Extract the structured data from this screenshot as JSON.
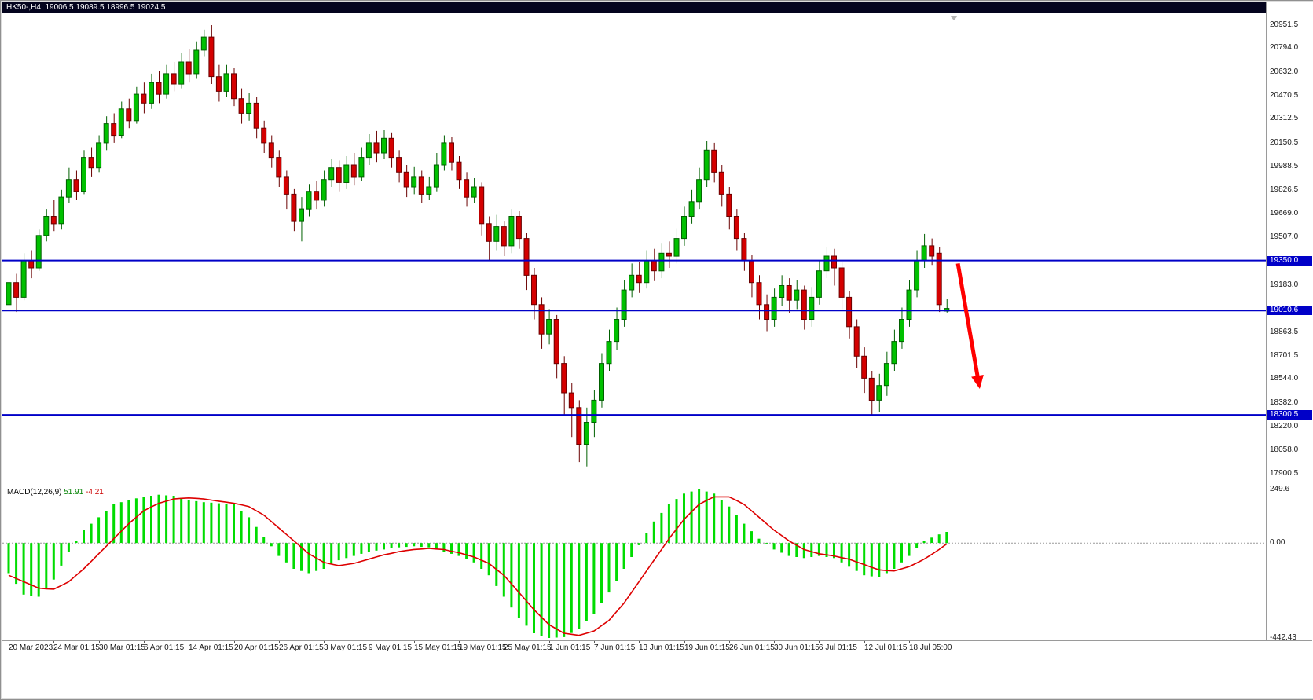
{
  "window": {
    "title": "HK50-,H4  19006.5 19089.5 18996.5 19024.5"
  },
  "macd_label": {
    "name": "MACD(12,26,9)",
    "main_value": "51.91",
    "signal_value": "-4.21"
  },
  "price_axis": {
    "ticks": [
      "20951.5",
      "20794.0",
      "20632.0",
      "20470.5",
      "20312.5",
      "20150.5",
      "19988.5",
      "19826.5",
      "19669.0",
      "19507.0",
      "19183.0",
      "18863.5",
      "18701.5",
      "18544.0",
      "18382.0",
      "18220.0",
      "18058.0",
      "17900.5"
    ],
    "line_tags": [
      "19350.0",
      "19010.6",
      "18300.5"
    ]
  },
  "macd_axis": {
    "ticks": [
      "249.6",
      "0.00",
      "-442.43"
    ]
  },
  "colors": {
    "up": "#00c000",
    "up_border": "#006000",
    "down": "#d40000",
    "down_border": "#6a0000",
    "level_line": "#0000c8",
    "arrow": "#ff0000",
    "macd_hist": "#00dc00",
    "macd_signal": "#dd0000"
  },
  "chart_data": {
    "type": "candlestick",
    "symbol": "HK50-",
    "timeframe": "H4",
    "current_ohlc": {
      "open": 19006.5,
      "high": 19089.5,
      "low": 18996.5,
      "close": 19024.5
    },
    "price_ylim": [
      17820,
      21031
    ],
    "levels": [
      19350.0,
      19010.6,
      18300.5
    ],
    "arrow_annotation": {
      "from": {
        "index": 126.5,
        "price": 19330
      },
      "to": {
        "index": 129.2,
        "price": 18540
      }
    },
    "candles": [
      [
        19050,
        19230,
        18950,
        19200
      ],
      [
        19200,
        19260,
        19000,
        19100
      ],
      [
        19100,
        19400,
        19080,
        19350
      ],
      [
        19350,
        19420,
        19230,
        19300
      ],
      [
        19300,
        19560,
        19280,
        19520
      ],
      [
        19520,
        19700,
        19480,
        19650
      ],
      [
        19650,
        19760,
        19550,
        19600
      ],
      [
        19600,
        19830,
        19560,
        19780
      ],
      [
        19780,
        19980,
        19740,
        19900
      ],
      [
        19900,
        19960,
        19760,
        19820
      ],
      [
        19820,
        20100,
        19800,
        20050
      ],
      [
        20050,
        20120,
        19920,
        19980
      ],
      [
        19980,
        20200,
        19950,
        20150
      ],
      [
        20150,
        20330,
        20100,
        20280
      ],
      [
        20280,
        20350,
        20150,
        20200
      ],
      [
        20200,
        20430,
        20180,
        20380
      ],
      [
        20380,
        20450,
        20250,
        20300
      ],
      [
        20300,
        20530,
        20280,
        20480
      ],
      [
        20480,
        20560,
        20350,
        20420
      ],
      [
        20420,
        20620,
        20380,
        20560
      ],
      [
        20560,
        20640,
        20420,
        20480
      ],
      [
        20480,
        20680,
        20450,
        20620
      ],
      [
        20620,
        20700,
        20500,
        20550
      ],
      [
        20550,
        20760,
        20520,
        20700
      ],
      [
        20700,
        20790,
        20560,
        20620
      ],
      [
        20620,
        20840,
        20590,
        20780
      ],
      [
        20780,
        20920,
        20740,
        20870
      ],
      [
        20870,
        20951,
        20550,
        20600
      ],
      [
        20600,
        20680,
        20430,
        20500
      ],
      [
        20500,
        20680,
        20460,
        20620
      ],
      [
        20620,
        20660,
        20400,
        20450
      ],
      [
        20450,
        20520,
        20280,
        20350
      ],
      [
        20350,
        20490,
        20300,
        20420
      ],
      [
        20420,
        20460,
        20180,
        20250
      ],
      [
        20250,
        20300,
        20080,
        20150
      ],
      [
        20150,
        20200,
        19980,
        20050
      ],
      [
        20050,
        20100,
        19850,
        19920
      ],
      [
        19920,
        19960,
        19700,
        19800
      ],
      [
        19800,
        19840,
        19550,
        19620
      ],
      [
        19620,
        19780,
        19480,
        19700
      ],
      [
        19700,
        19870,
        19650,
        19820
      ],
      [
        19820,
        19890,
        19700,
        19760
      ],
      [
        19760,
        19960,
        19720,
        19900
      ],
      [
        19900,
        20040,
        19850,
        19980
      ],
      [
        19980,
        20030,
        19820,
        19880
      ],
      [
        19880,
        20060,
        19840,
        20000
      ],
      [
        20000,
        20080,
        19860,
        19920
      ],
      [
        19920,
        20120,
        19890,
        20050
      ],
      [
        20050,
        20210,
        20000,
        20150
      ],
      [
        20150,
        20230,
        20020,
        20080
      ],
      [
        20080,
        20240,
        20040,
        20180
      ],
      [
        20180,
        20220,
        19980,
        20050
      ],
      [
        20050,
        20100,
        19880,
        19950
      ],
      [
        19950,
        20000,
        19780,
        19850
      ],
      [
        19850,
        19990,
        19800,
        19920
      ],
      [
        19920,
        19960,
        19740,
        19800
      ],
      [
        19800,
        19920,
        19760,
        19850
      ],
      [
        19850,
        20080,
        19820,
        20000
      ],
      [
        20000,
        20200,
        19960,
        20150
      ],
      [
        20150,
        20190,
        19960,
        20020
      ],
      [
        20020,
        20060,
        19840,
        19900
      ],
      [
        19900,
        19950,
        19720,
        19780
      ],
      [
        19780,
        19910,
        19740,
        19850
      ],
      [
        19850,
        19880,
        19520,
        19600
      ],
      [
        19600,
        19650,
        19350,
        19480
      ],
      [
        19480,
        19660,
        19420,
        19580
      ],
      [
        19580,
        19620,
        19380,
        19450
      ],
      [
        19450,
        19700,
        19400,
        19650
      ],
      [
        19650,
        19690,
        19430,
        19500
      ],
      [
        19500,
        19540,
        19150,
        19250
      ],
      [
        19250,
        19300,
        18950,
        19050
      ],
      [
        19050,
        19100,
        18750,
        18850
      ],
      [
        18850,
        19020,
        18780,
        18950
      ],
      [
        18950,
        18980,
        18550,
        18650
      ],
      [
        18650,
        18700,
        18300,
        18450
      ],
      [
        18450,
        18520,
        18150,
        18350
      ],
      [
        18350,
        18400,
        17980,
        18100
      ],
      [
        18100,
        18350,
        17950,
        18250
      ],
      [
        18250,
        18470,
        18150,
        18400
      ],
      [
        18400,
        18720,
        18350,
        18650
      ],
      [
        18650,
        18880,
        18600,
        18800
      ],
      [
        18800,
        19030,
        18740,
        18950
      ],
      [
        18950,
        19220,
        18900,
        19150
      ],
      [
        19150,
        19330,
        19100,
        19250
      ],
      [
        19250,
        19340,
        19130,
        19200
      ],
      [
        19200,
        19420,
        19160,
        19350
      ],
      [
        19350,
        19430,
        19210,
        19280
      ],
      [
        19280,
        19470,
        19230,
        19400
      ],
      [
        19400,
        19480,
        19300,
        19380
      ],
      [
        19380,
        19570,
        19330,
        19500
      ],
      [
        19500,
        19720,
        19450,
        19650
      ],
      [
        19650,
        19830,
        19600,
        19750
      ],
      [
        19750,
        19980,
        19700,
        19900
      ],
      [
        19900,
        20160,
        19850,
        20100
      ],
      [
        20100,
        20150,
        19880,
        19950
      ],
      [
        19950,
        20000,
        19720,
        19800
      ],
      [
        19800,
        19850,
        19560,
        19650
      ],
      [
        19650,
        19700,
        19420,
        19500
      ],
      [
        19500,
        19540,
        19280,
        19350
      ],
      [
        19350,
        19390,
        19100,
        19200
      ],
      [
        19200,
        19250,
        18950,
        19050
      ],
      [
        19050,
        19120,
        18870,
        18950
      ],
      [
        18950,
        19160,
        18900,
        19100
      ],
      [
        19100,
        19250,
        19040,
        19180
      ],
      [
        19180,
        19230,
        18990,
        19080
      ],
      [
        19080,
        19220,
        19020,
        19150
      ],
      [
        19150,
        19180,
        18880,
        18950
      ],
      [
        18950,
        19170,
        18900,
        19100
      ],
      [
        19100,
        19350,
        19050,
        19280
      ],
      [
        19280,
        19440,
        19230,
        19380
      ],
      [
        19380,
        19430,
        19180,
        19300
      ],
      [
        19300,
        19340,
        19020,
        19100
      ],
      [
        19100,
        19140,
        18820,
        18900
      ],
      [
        18900,
        18950,
        18620,
        18700
      ],
      [
        18700,
        18760,
        18450,
        18550
      ],
      [
        18550,
        18600,
        18300,
        18400
      ],
      [
        18400,
        18580,
        18320,
        18500
      ],
      [
        18500,
        18730,
        18430,
        18650
      ],
      [
        18650,
        18880,
        18600,
        18800
      ],
      [
        18800,
        19030,
        18750,
        18950
      ],
      [
        18950,
        19220,
        18900,
        19150
      ],
      [
        19150,
        19420,
        19100,
        19350
      ],
      [
        19350,
        19530,
        19300,
        19450
      ],
      [
        19450,
        19500,
        19320,
        19380
      ],
      [
        19400,
        19440,
        19000,
        19050
      ],
      [
        19006.5,
        19089.5,
        18996.5,
        19024.5
      ]
    ],
    "x_labels": [
      {
        "i": 0,
        "t": "20 Mar 2023"
      },
      {
        "i": 6,
        "t": "24 Mar 01:15"
      },
      {
        "i": 12,
        "t": "30 Mar 01:15"
      },
      {
        "i": 18,
        "t": "6 Apr 01:15"
      },
      {
        "i": 24,
        "t": "14 Apr 01:15"
      },
      {
        "i": 30,
        "t": "20 Apr 01:15"
      },
      {
        "i": 36,
        "t": "26 Apr 01:15"
      },
      {
        "i": 42,
        "t": "3 May 01:15"
      },
      {
        "i": 48,
        "t": "9 May 01:15"
      },
      {
        "i": 54,
        "t": "15 May 01:15"
      },
      {
        "i": 60,
        "t": "19 May 01:15"
      },
      {
        "i": 66,
        "t": "25 May 01:15"
      },
      {
        "i": 72,
        "t": "1 Jun 01:15"
      },
      {
        "i": 78,
        "t": "7 Jun 01:15"
      },
      {
        "i": 84,
        "t": "13 Jun 01:15"
      },
      {
        "i": 90,
        "t": "19 Jun 01:15"
      },
      {
        "i": 96,
        "t": "26 Jun 01:15"
      },
      {
        "i": 102,
        "t": "30 Jun 01:15"
      },
      {
        "i": 108,
        "t": "6 Jul 01:15"
      },
      {
        "i": 114,
        "t": "12 Jul 01:15"
      },
      {
        "i": 120,
        "t": "18 Jul 05:00"
      }
    ],
    "macd": {
      "params": "12,26,9",
      "ylim": [
        -453,
        264
      ],
      "zero_level": 0,
      "histogram": [
        -140,
        -190,
        -240,
        -245,
        -250,
        -210,
        -170,
        -105,
        -40,
        10,
        60,
        90,
        120,
        150,
        180,
        190,
        200,
        208,
        215,
        220,
        225,
        222,
        220,
        210,
        200,
        195,
        190,
        188,
        185,
        182,
        180,
        150,
        120,
        75,
        30,
        -15,
        -60,
        -90,
        -120,
        -130,
        -140,
        -130,
        -120,
        -100,
        -80,
        -70,
        -60,
        -50,
        -40,
        -35,
        -30,
        -25,
        -20,
        -18,
        -15,
        -18,
        -20,
        -30,
        -40,
        -50,
        -60,
        -75,
        -90,
        -120,
        -150,
        -200,
        -250,
        -300,
        -350,
        -385,
        -420,
        -431,
        -442,
        -440,
        -438,
        -419,
        -400,
        -365,
        -330,
        -280,
        -230,
        -175,
        -120,
        -65,
        -10,
        45,
        100,
        140,
        180,
        205,
        230,
        240,
        250,
        240,
        230,
        200,
        170,
        130,
        90,
        55,
        20,
        -5,
        -30,
        -45,
        -60,
        -65,
        -70,
        -65,
        -60,
        -65,
        -70,
        -90,
        -110,
        -130,
        -150,
        -155,
        -160,
        -140,
        -120,
        -90,
        -60,
        -25,
        10,
        25,
        40,
        51.91
      ],
      "signal": [
        -150,
        -165,
        -180,
        -195,
        -210,
        -213,
        -215,
        -198,
        -180,
        -150,
        -120,
        -85,
        -50,
        -15,
        20,
        55,
        90,
        120,
        150,
        168,
        185,
        195,
        205,
        208,
        210,
        208,
        205,
        200,
        195,
        190,
        185,
        178,
        170,
        150,
        130,
        100,
        70,
        40,
        10,
        -20,
        -50,
        -70,
        -90,
        -98,
        -105,
        -100,
        -95,
        -85,
        -75,
        -65,
        -55,
        -48,
        -40,
        -35,
        -30,
        -28,
        -25,
        -28,
        -30,
        -38,
        -45,
        -55,
        -65,
        -80,
        -95,
        -123,
        -150,
        -190,
        -230,
        -270,
        -310,
        -345,
        -380,
        -400,
        -420,
        -425,
        -430,
        -420,
        -410,
        -385,
        -360,
        -320,
        -280,
        -230,
        -180,
        -130,
        -80,
        -30,
        20,
        65,
        110,
        145,
        180,
        198,
        215,
        215,
        215,
        198,
        180,
        150,
        120,
        90,
        60,
        35,
        10,
        -10,
        -30,
        -40,
        -50,
        -55,
        -60,
        -68,
        -75,
        -88,
        -100,
        -113,
        -125,
        -128,
        -130,
        -120,
        -110,
        -93,
        -75,
        -53,
        -30,
        -4.21
      ]
    }
  }
}
